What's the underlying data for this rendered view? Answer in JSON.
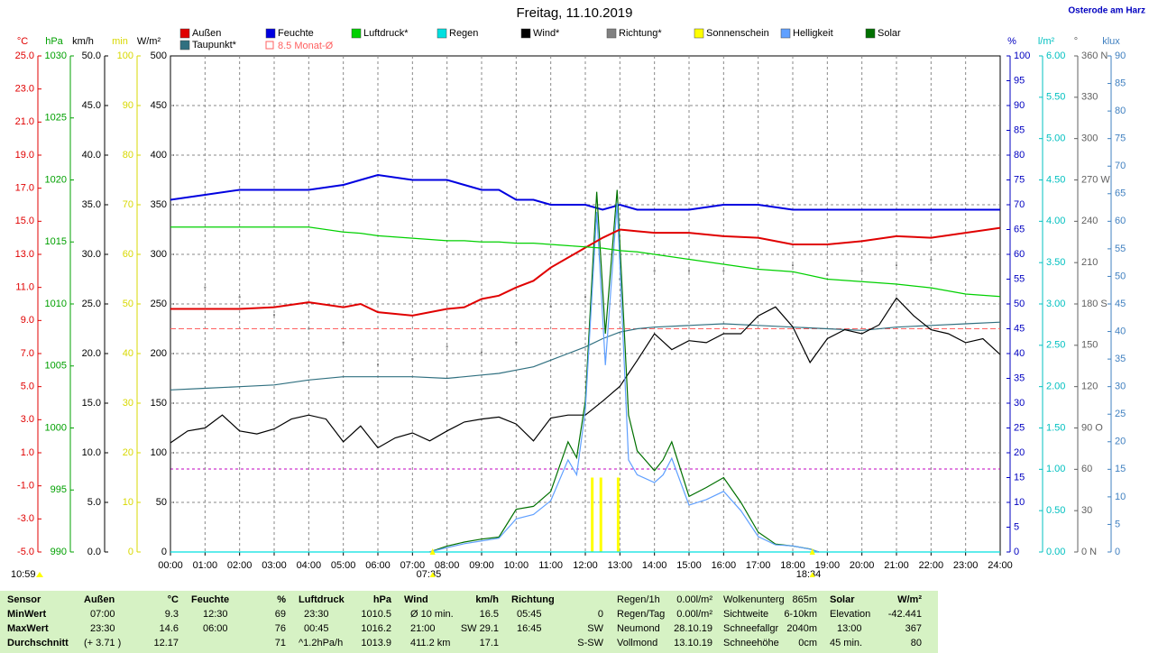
{
  "chart_data": {
    "type": "line",
    "title": "Freitag, 11.10.2019",
    "location": "Osterode am Harz",
    "sunshine_duration": "10:59",
    "annotations": [
      {
        "x": 7.583,
        "label": "07:35"
      },
      {
        "x": 18.567,
        "label": "18:34"
      }
    ],
    "xlim": [
      0,
      24
    ],
    "xticks": [
      {
        "value": 0,
        "label": "00:00"
      },
      {
        "value": 1,
        "label": "01:00"
      },
      {
        "value": 2,
        "label": "02:00"
      },
      {
        "value": 3,
        "label": "03:00"
      },
      {
        "value": 4,
        "label": "04:00"
      },
      {
        "value": 5,
        "label": "05:00"
      },
      {
        "value": 6,
        "label": "06:00"
      },
      {
        "value": 7,
        "label": "07:00"
      },
      {
        "value": 8,
        "label": "08:00"
      },
      {
        "value": 9,
        "label": "09:00"
      },
      {
        "value": 10,
        "label": "10:00"
      },
      {
        "value": 11,
        "label": "11:00"
      },
      {
        "value": 12,
        "label": "12:00"
      },
      {
        "value": 13,
        "label": "13:00"
      },
      {
        "value": 14,
        "label": "14:00"
      },
      {
        "value": 15,
        "label": "15:00"
      },
      {
        "value": 16,
        "label": "16:00"
      },
      {
        "value": 17,
        "label": "17:00"
      },
      {
        "value": 18,
        "label": "18:00"
      },
      {
        "value": 19,
        "label": "19:00"
      },
      {
        "value": 20,
        "label": "20:00"
      },
      {
        "value": 21,
        "label": "21:00"
      },
      {
        "value": 22,
        "label": "22:00"
      },
      {
        "value": 23,
        "label": "23:00"
      },
      {
        "value": 24,
        "label": "24:00"
      }
    ],
    "grid": true,
    "axes": [
      {
        "unit": "°C",
        "color": "#e00000",
        "lim": [
          -5,
          25
        ],
        "ticks": [
          {
            "value": -5,
            "label": "-5.0"
          },
          {
            "value": -3,
            "label": "-3.0"
          },
          {
            "value": -1,
            "label": "-1.0"
          },
          {
            "value": 1,
            "label": "1.0"
          },
          {
            "value": 3,
            "label": "3.0"
          },
          {
            "value": 5,
            "label": "5.0"
          },
          {
            "value": 7,
            "label": "7.0"
          },
          {
            "value": 9,
            "label": "9.0"
          },
          {
            "value": 11,
            "label": "11.0"
          },
          {
            "value": 13,
            "label": "13.0"
          },
          {
            "value": 15,
            "label": "15.0"
          },
          {
            "value": 17,
            "label": "17.0"
          },
          {
            "value": 19,
            "label": "19.0"
          },
          {
            "value": 21,
            "label": "21.0"
          },
          {
            "value": 23,
            "label": "23.0"
          },
          {
            "value": 25,
            "label": "25.0"
          }
        ]
      },
      {
        "unit": "hPa",
        "color": "#00a000",
        "lim": [
          990,
          1030
        ],
        "ticks": [
          990,
          995,
          1000,
          1005,
          1010,
          1015,
          1020,
          1025,
          1030
        ]
      },
      {
        "unit": "km/h",
        "color": "#000000",
        "lim": [
          0,
          50
        ],
        "ticks": [
          {
            "value": 0,
            "label": "0.0"
          },
          {
            "value": 5,
            "label": "5.0"
          },
          {
            "value": 10,
            "label": "10.0"
          },
          {
            "value": 15,
            "label": "15.0"
          },
          {
            "value": 20,
            "label": "20.0"
          },
          {
            "value": 25,
            "label": "25.0"
          },
          {
            "value": 30,
            "label": "30.0"
          },
          {
            "value": 35,
            "label": "35.0"
          },
          {
            "value": 40,
            "label": "40.0"
          },
          {
            "value": 45,
            "label": "45.0"
          },
          {
            "value": 50,
            "label": "50.0"
          }
        ]
      },
      {
        "unit": "min",
        "color": "#d8d800",
        "lim": [
          0,
          100
        ],
        "ticks": [
          0,
          10,
          20,
          30,
          40,
          50,
          60,
          70,
          80,
          90,
          100
        ]
      },
      {
        "unit": "W/m²",
        "color": "#000000",
        "lim": [
          0,
          500
        ],
        "ticks": [
          0,
          50,
          100,
          150,
          200,
          250,
          300,
          350,
          400,
          450,
          500
        ],
        "grid": true
      },
      {
        "unit": "%",
        "color": "#0000c0",
        "lim": [
          0,
          100
        ],
        "ticks": [
          0,
          5,
          10,
          15,
          20,
          25,
          30,
          35,
          40,
          45,
          50,
          55,
          60,
          65,
          70,
          75,
          80,
          85,
          90,
          95,
          100
        ]
      },
      {
        "unit": "l/m²",
        "color": "#00c0c0",
        "lim": [
          0,
          6
        ],
        "ticks": [
          {
            "value": 0,
            "label": "0.00"
          },
          {
            "value": 0.5,
            "label": "0.50"
          },
          {
            "value": 1,
            "label": "1.00"
          },
          {
            "value": 1.5,
            "label": "1.50"
          },
          {
            "value": 2,
            "label": "2.00"
          },
          {
            "value": 2.5,
            "label": "2.50"
          },
          {
            "value": 3,
            "label": "3.00"
          },
          {
            "value": 3.5,
            "label": "3.50"
          },
          {
            "value": 4,
            "label": "4.00"
          },
          {
            "value": 4.5,
            "label": "4.50"
          },
          {
            "value": 5,
            "label": "5.00"
          },
          {
            "value": 5.5,
            "label": "5.50"
          },
          {
            "value": 6,
            "label": "6.00"
          }
        ]
      },
      {
        "unit": "°",
        "color": "#606060",
        "lim": [
          0,
          360
        ],
        "ticks": [
          {
            "value": 0,
            "label": "0 N"
          },
          30,
          60,
          {
            "value": 90,
            "label": "90 O"
          },
          120,
          150,
          {
            "value": 180,
            "label": "180 S"
          },
          210,
          240,
          {
            "value": 270,
            "label": "270 W"
          },
          300,
          330,
          {
            "value": 360,
            "label": "360 N"
          }
        ]
      },
      {
        "unit": "klux",
        "color": "#4080c0",
        "lim": [
          0,
          90
        ],
        "ticks": [
          0,
          5,
          10,
          15,
          20,
          25,
          30,
          35,
          40,
          45,
          50,
          55,
          60,
          65,
          70,
          75,
          80,
          85,
          90
        ]
      }
    ],
    "reference_lines": [
      {
        "name": "8.5 Monat-Ø",
        "value": 8.5,
        "axis": 0,
        "color": "#ff6060"
      }
    ],
    "series": [
      {
        "name": "Außen",
        "color": "#e00000",
        "axis": 0,
        "type": "line",
        "x": [
          0,
          1,
          2,
          3,
          4,
          5,
          5.5,
          6,
          7,
          8,
          8.5,
          9,
          9.5,
          10,
          10.5,
          11,
          11.5,
          12,
          12.5,
          13,
          13.5,
          14,
          15,
          16,
          17,
          18,
          19,
          20,
          21,
          22,
          23,
          24
        ],
        "values": [
          9.7,
          9.7,
          9.7,
          9.8,
          10.1,
          9.8,
          10.0,
          9.5,
          9.3,
          9.7,
          9.8,
          10.3,
          10.5,
          11.0,
          11.4,
          12.2,
          12.8,
          13.4,
          14.0,
          14.5,
          14.4,
          14.3,
          14.3,
          14.1,
          14.0,
          13.6,
          13.6,
          13.8,
          14.1,
          14.0,
          14.3,
          14.6
        ]
      },
      {
        "name": "Feuchte",
        "color": "#0000e0",
        "axis": 5,
        "type": "line",
        "x": [
          0,
          1,
          2,
          3,
          4,
          5,
          5.5,
          6,
          7,
          8,
          8.5,
          9,
          9.5,
          10,
          10.5,
          11,
          11.5,
          12,
          12.5,
          13,
          13.5,
          14,
          15,
          16,
          17,
          18,
          19,
          20,
          21,
          22,
          23,
          24
        ],
        "values": [
          71,
          72,
          73,
          73,
          73,
          74,
          75,
          76,
          75,
          75,
          74,
          73,
          73,
          71,
          71,
          70,
          70,
          70,
          69,
          70,
          69,
          69,
          69,
          70,
          70,
          69,
          69,
          69,
          69,
          69,
          69,
          69
        ]
      },
      {
        "name": "Luftdruck*",
        "color": "#00d000",
        "axis": 1,
        "type": "line",
        "x": [
          0,
          1,
          2,
          3,
          4,
          5,
          5.5,
          6,
          7,
          8,
          8.5,
          9,
          9.5,
          10,
          10.5,
          11,
          11.5,
          12,
          12.5,
          13,
          13.5,
          14,
          15,
          16,
          17,
          18,
          19,
          20,
          21,
          22,
          23,
          24
        ],
        "values": [
          1016.2,
          1016.2,
          1016.2,
          1016.2,
          1016.2,
          1015.8,
          1015.7,
          1015.5,
          1015.3,
          1015.1,
          1015.1,
          1015.0,
          1015.0,
          1014.9,
          1014.9,
          1014.8,
          1014.7,
          1014.6,
          1014.5,
          1014.3,
          1014.2,
          1014.0,
          1013.6,
          1013.2,
          1012.8,
          1012.6,
          1012.0,
          1011.8,
          1011.6,
          1011.3,
          1010.8,
          1010.6
        ]
      },
      {
        "name": "Regen",
        "color": "#00e0e0",
        "axis": 6,
        "type": "line",
        "x": [
          0,
          24
        ],
        "values": [
          0,
          0
        ]
      },
      {
        "name": "Wind*",
        "color": "#000000",
        "axis": 2,
        "type": "line",
        "x": [
          0,
          0.5,
          1,
          1.5,
          2,
          2.5,
          3,
          3.5,
          4,
          4.5,
          5,
          5.5,
          6,
          6.5,
          7,
          7.5,
          8,
          8.5,
          9,
          9.5,
          10,
          10.5,
          11,
          11.5,
          12,
          12.5,
          13,
          13.5,
          14,
          14.5,
          15,
          15.5,
          16,
          16.5,
          17,
          17.5,
          18,
          18.5,
          19,
          19.5,
          20,
          20.5,
          21,
          21.5,
          22,
          22.5,
          23,
          23.5,
          24
        ],
        "values": [
          11.0,
          12.2,
          12.5,
          13.8,
          12.2,
          11.9,
          12.4,
          13.4,
          13.8,
          13.4,
          11.1,
          12.7,
          10.5,
          11.5,
          12.0,
          11.2,
          12.2,
          13.1,
          13.4,
          13.6,
          12.9,
          11.2,
          13.5,
          13.8,
          13.8,
          15.2,
          16.7,
          19.3,
          22.0,
          20.4,
          21.3,
          21.1,
          22.0,
          22.0,
          23.8,
          24.7,
          22.7,
          19.1,
          21.5,
          22.4,
          22.0,
          22.9,
          25.6,
          23.8,
          22.4,
          22.0,
          21.1,
          21.5,
          19.9
        ]
      },
      {
        "name": "Richtung*",
        "color": "#808080",
        "axis": 7,
        "type": "scatter",
        "x": [
          0,
          1,
          2,
          3,
          4,
          5,
          6,
          7,
          8,
          9,
          10,
          11,
          12,
          13,
          14,
          15,
          16,
          17,
          18,
          19,
          20,
          21,
          22,
          23,
          24
        ],
        "values": [
          188,
          192,
          185,
          172,
          162,
          152,
          136,
          140,
          149,
          145,
          152,
          178,
          185,
          198,
          204,
          204,
          204,
          207,
          208,
          201,
          204,
          208,
          212,
          214,
          216
        ]
      },
      {
        "name": "Sonnenschein",
        "color": "#ffff00",
        "axis": 3,
        "type": "bar",
        "x": [
          12.2,
          12.45,
          12.95
        ],
        "values": [
          15,
          15,
          15
        ]
      },
      {
        "name": "Helligkeit",
        "color": "#60a0ff",
        "axis": 8,
        "type": "line",
        "x": [
          7.5,
          8,
          8.5,
          9,
          9.5,
          10,
          10.5,
          11,
          11.5,
          11.75,
          12,
          12.33,
          12.58,
          12.92,
          13.25,
          13.5,
          14,
          14.25,
          14.5,
          15,
          15.5,
          16,
          16.5,
          17,
          17.5,
          18,
          18.5,
          18.75
        ],
        "values": [
          0,
          0.8,
          1.5,
          2,
          2.5,
          6,
          6.8,
          9.3,
          16.7,
          14,
          25.7,
          61.7,
          33.9,
          63.3,
          16.7,
          14,
          12.6,
          14,
          17,
          8.5,
          9.5,
          11,
          7.5,
          2.8,
          1.3,
          1.1,
          0.5,
          0
        ]
      },
      {
        "name": "Solar",
        "color": "#007000",
        "axis": 4,
        "type": "line",
        "x": [
          7.5,
          8,
          8.5,
          9,
          9.5,
          10,
          10.5,
          11,
          11.5,
          11.75,
          12,
          12.33,
          12.58,
          12.92,
          13.25,
          13.5,
          14,
          14.25,
          14.5,
          15,
          15.5,
          16,
          16.5,
          17,
          17.5,
          18,
          18.5,
          18.75
        ],
        "values": [
          0,
          6,
          10,
          13,
          15,
          43,
          46,
          61,
          111,
          95,
          152,
          363,
          220,
          365,
          138,
          102,
          82,
          93,
          111,
          56,
          65,
          75,
          50,
          20,
          8,
          6,
          3,
          0
        ]
      },
      {
        "name": "Taupunkt*",
        "color": "#307080",
        "axis": 0,
        "type": "line",
        "x": [
          0,
          1,
          2,
          3,
          4,
          5,
          5.5,
          6,
          7,
          8,
          8.5,
          9,
          9.5,
          10,
          10.5,
          11,
          11.5,
          12,
          12.5,
          13,
          13.5,
          14,
          15,
          16,
          17,
          18,
          19,
          20,
          21,
          22,
          23,
          24
        ],
        "values": [
          4.8,
          4.9,
          5.0,
          5.1,
          5.4,
          5.6,
          5.6,
          5.6,
          5.6,
          5.5,
          5.6,
          5.7,
          5.8,
          6.0,
          6.2,
          6.6,
          7.0,
          7.4,
          7.9,
          8.3,
          8.5,
          8.6,
          8.7,
          8.8,
          8.7,
          8.6,
          8.5,
          8.4,
          8.6,
          8.7,
          8.8,
          8.9
        ]
      }
    ]
  },
  "table": {
    "rows": [
      [
        "Sensor",
        "Außen",
        "°C",
        "Feuchte",
        "%",
        "Luftdruck",
        "hPa",
        "Wind",
        "km/h",
        "Richtung",
        "Regen/1h",
        "0.00l/m²",
        "Wolkenunterg",
        "865m",
        "Solar",
        "W/m²"
      ],
      [
        "MinWert",
        "07:00",
        "9.3",
        "12:30",
        "69",
        "23:30",
        "1010.5",
        "Ø 10 min.",
        "16.5",
        "05:45",
        "0",
        "Regen/Tag",
        "0.00l/m²",
        "Sichtweite",
        "6-10km",
        "Elevation",
        "-42.441"
      ],
      [
        "MaxWert",
        "23:30",
        "14.6",
        "06:00",
        "76",
        "00:45",
        "1016.2",
        "21:00",
        "SW 29.1",
        "16:45",
        "SW",
        "Neumond",
        "28.10.19",
        "Schneefallgr",
        "2040m",
        "13:00",
        "367"
      ],
      [
        "Durchschnitt",
        "(+ 3.71 )",
        "12.17",
        "71",
        "^1.2hPa/h",
        "1013.9",
        "411.2 km",
        "17.1",
        "S-SW",
        "Vollmond",
        "13.10.19",
        "Schneehöhe",
        "0cm",
        "45 min.",
        "80"
      ]
    ]
  }
}
